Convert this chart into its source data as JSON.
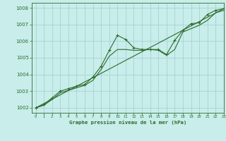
{
  "title": "Graphe pression niveau de la mer (hPa)",
  "bg_color": "#c8edea",
  "line_color": "#2d6b2d",
  "grid_color": "#9ecfcc",
  "xlim": [
    -0.5,
    23
  ],
  "ylim": [
    1001.7,
    1008.3
  ],
  "yticks": [
    1002,
    1003,
    1004,
    1005,
    1006,
    1007,
    1008
  ],
  "xticks": [
    0,
    1,
    2,
    3,
    4,
    5,
    6,
    7,
    8,
    9,
    10,
    11,
    12,
    13,
    14,
    15,
    16,
    17,
    18,
    19,
    20,
    21,
    22,
    23
  ],
  "series1_x": [
    0,
    1,
    2,
    3,
    4,
    5,
    6,
    7,
    8,
    9,
    10,
    11,
    12,
    13,
    14,
    15,
    16,
    17,
    18,
    19,
    20,
    21,
    22,
    23
  ],
  "series1_y": [
    1002.0,
    1002.2,
    1002.6,
    1003.0,
    1003.15,
    1003.3,
    1003.4,
    1003.85,
    1004.5,
    1005.45,
    1006.35,
    1006.1,
    1005.6,
    1005.5,
    1005.5,
    1005.5,
    1005.2,
    1006.05,
    1006.65,
    1007.05,
    1007.1,
    1007.6,
    1007.85,
    1007.95
  ],
  "series2_x": [
    0,
    1,
    2,
    3,
    4,
    5,
    6,
    7,
    8,
    9,
    10,
    11,
    12,
    13,
    14,
    15,
    16,
    17,
    18,
    19,
    20,
    21,
    22,
    23
  ],
  "series2_y": [
    1002.0,
    1002.15,
    1002.5,
    1002.9,
    1003.05,
    1003.2,
    1003.35,
    1003.65,
    1004.3,
    1005.1,
    1005.5,
    1005.5,
    1005.45,
    1005.45,
    1005.5,
    1005.45,
    1005.15,
    1005.5,
    1006.55,
    1006.75,
    1006.95,
    1007.25,
    1007.7,
    1007.85
  ],
  "trend_x": [
    0,
    23
  ],
  "trend_y": [
    1002.0,
    1007.95
  ],
  "marker_x": [
    0,
    1,
    2,
    3,
    4,
    5,
    6,
    7,
    8,
    9,
    10,
    11,
    12,
    13,
    14,
    15,
    16,
    17,
    18,
    19,
    20,
    21,
    22,
    23
  ],
  "marker_y": [
    1002.0,
    1002.2,
    1002.6,
    1003.0,
    1003.15,
    1003.3,
    1003.4,
    1003.85,
    1004.5,
    1005.45,
    1006.35,
    1006.1,
    1005.6,
    1005.5,
    1005.5,
    1005.5,
    1005.2,
    1006.05,
    1006.65,
    1007.05,
    1007.1,
    1007.6,
    1007.85,
    1007.95
  ]
}
